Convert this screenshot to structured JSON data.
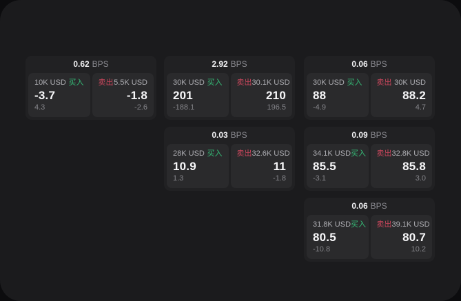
{
  "labels": {
    "bps_suffix": "BPS",
    "buy": "买入",
    "sell": "卖出"
  },
  "colors": {
    "buy_accent": "#35bd78",
    "sell_accent": "#c9465c",
    "window_bg": "#1b1b1d",
    "card_bg": "#212123",
    "panel_bg": "#2a2a2c"
  },
  "cards": [
    {
      "bps": "0.62",
      "row": 1,
      "col": 1,
      "buy": {
        "amount": "10K USD",
        "price": "-3.7",
        "delta": "4.3"
      },
      "sell": {
        "amount": "5.5K USD",
        "price": "-1.8",
        "delta": "-2.6"
      }
    },
    {
      "bps": "2.92",
      "row": 1,
      "col": 2,
      "buy": {
        "amount": "30K USD",
        "price": "201",
        "delta": "-188.1"
      },
      "sell": {
        "amount": "30.1K USD",
        "price": "210",
        "delta": "196.5"
      }
    },
    {
      "bps": "0.06",
      "row": 1,
      "col": 3,
      "buy": {
        "amount": "30K USD",
        "price": "88",
        "delta": "-4.9"
      },
      "sell": {
        "amount": "30K USD",
        "price": "88.2",
        "delta": "4.7"
      }
    },
    {
      "bps": "0.03",
      "row": 2,
      "col": 2,
      "buy": {
        "amount": "28K USD",
        "price": "10.9",
        "delta": "1.3"
      },
      "sell": {
        "amount": "32.6K USD",
        "price": "11",
        "delta": "-1.8"
      }
    },
    {
      "bps": "0.09",
      "row": 2,
      "col": 3,
      "buy": {
        "amount": "34.1K USD",
        "price": "85.5",
        "delta": "-3.1"
      },
      "sell": {
        "amount": "32.8K USD",
        "price": "85.8",
        "delta": "3.0"
      }
    },
    {
      "bps": "0.06",
      "row": 3,
      "col": 3,
      "buy": {
        "amount": "31.8K USD",
        "price": "80.5",
        "delta": "-10.8"
      },
      "sell": {
        "amount": "39.1K USD",
        "price": "80.7",
        "delta": "10.2"
      }
    }
  ]
}
